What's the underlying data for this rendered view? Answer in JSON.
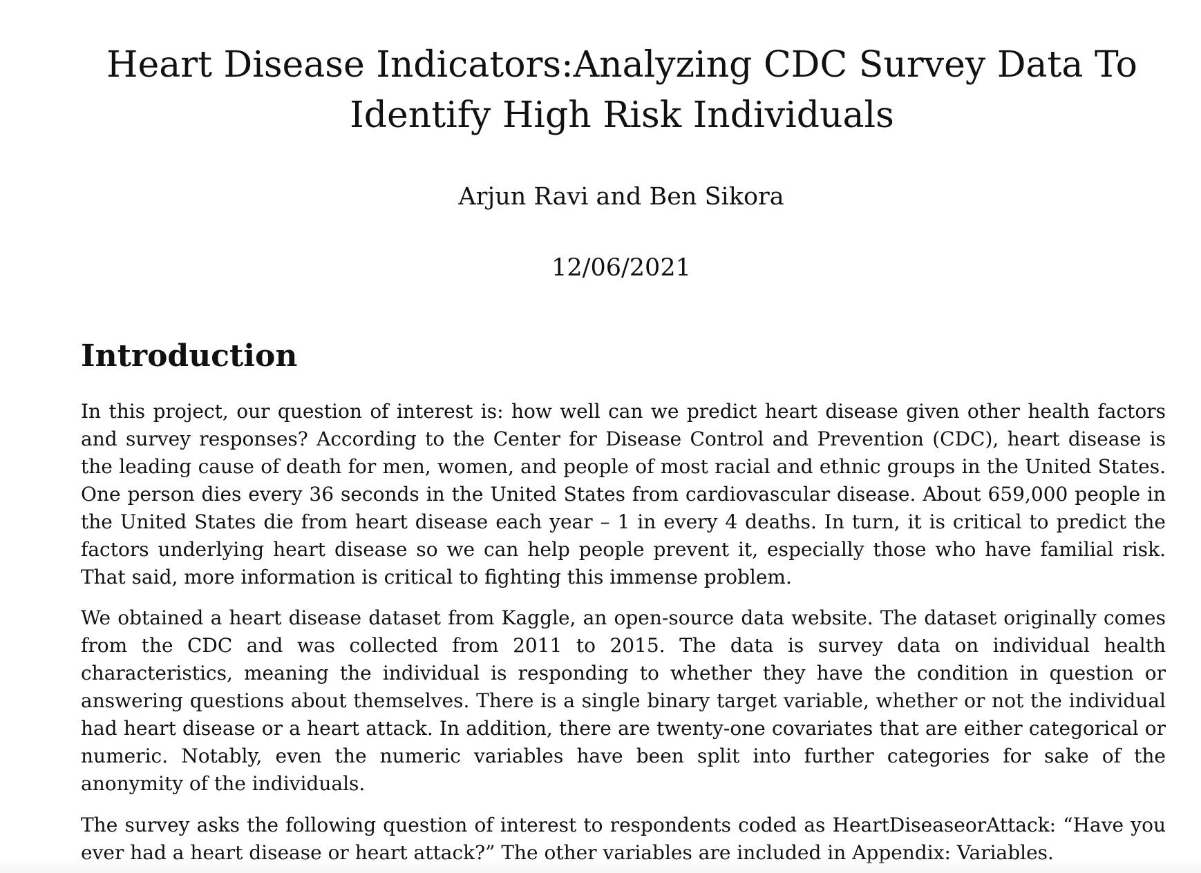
{
  "document": {
    "title": "Heart Disease Indicators:Analyzing CDC Survey Data To Identify High Risk Individuals",
    "authors": "Arjun Ravi and Ben Sikora",
    "date": "12/06/2021",
    "section_heading": "Introduction",
    "paragraphs": [
      "In this project, our question of interest is: how well can we predict heart disease given other health factors and survey responses? According to the Center for Disease Control and Prevention (CDC), heart disease is the leading cause of death for men, women, and people of most racial and ethnic groups in the United States. One person dies every 36 seconds in the United States from cardiovascular disease. About 659,000 people in the United States die from heart disease each year – 1 in every 4 deaths. In turn, it is critical to predict the factors underlying heart disease so we can help people prevent it, especially those who have familial risk. That said, more information is critical to fighting this immense problem.",
      "We obtained a heart disease dataset from Kaggle, an open-source data website. The dataset originally comes from the CDC and was collected from 2011 to 2015. The data is survey data on individual health characteristics, meaning the individual is responding to whether they have the condition in question or answering questions about themselves. There is a single binary target variable, whether or not the individual had heart disease or a heart attack. In addition, there are twenty-one covariates that are either categorical or numeric. Notably, even the numeric variables have been split into further categories for sake of the anonymity of the individuals.",
      "The survey asks the following question of interest to respondents coded as HeartDiseaseorAttack: “Have you ever had a heart disease or heart attack?” The other variables are included in Appendix: Variables."
    ]
  }
}
